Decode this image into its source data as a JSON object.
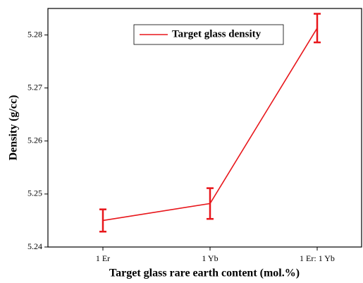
{
  "chart_data": {
    "type": "line",
    "x_label": "Target glass rare earth content (mol.%)",
    "y_label": "Density (g/cc)",
    "categories": [
      "1 Er",
      "1 Yb",
      "1 Er: 1 Yb"
    ],
    "series": [
      {
        "name": "Target glass density",
        "color": "#e8161b",
        "values": [
          5.245,
          5.2482,
          5.2813
        ],
        "errors": [
          0.0021,
          0.0029,
          0.0027
        ]
      }
    ],
    "ylim": [
      5.24,
      5.285
    ],
    "yticks": [
      5.24,
      5.25,
      5.26,
      5.27,
      5.28
    ],
    "legend": "top"
  }
}
